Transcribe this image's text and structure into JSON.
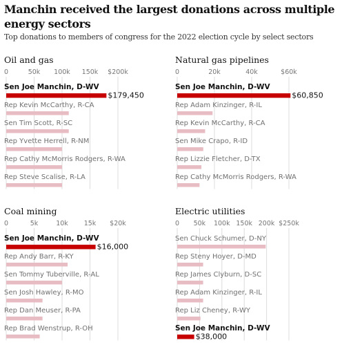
{
  "title": "Manchin received the largest donations across multiple energy sectors",
  "subtitle": "Top donations to members of congress for the 2022 election cycle by select sectors",
  "colors": {
    "highlight": "#c70000",
    "muted": "#e8bcc3",
    "grid": "#dcdcdc"
  },
  "chart_data": [
    {
      "type": "bar",
      "title": "Oil and gas",
      "xlim": [
        0,
        200000
      ],
      "ticks": [
        0,
        50000,
        100000,
        150000,
        200000
      ],
      "tick_labels": [
        "0",
        "50k",
        "100k",
        "150k",
        "$200k"
      ],
      "rows": [
        {
          "label": "Sen Joe Manchin, D-WV",
          "value": 179450,
          "value_label": "$179,450",
          "highlight": true
        },
        {
          "label": "Rep Kevin McCarthy, R-CA",
          "value": 112000,
          "highlight": false
        },
        {
          "label": "Sen Tim Scott, R-SC",
          "value": 112000,
          "highlight": false
        },
        {
          "label": "Rep Yvette Herrell, R-NM",
          "value": 100000,
          "highlight": false
        },
        {
          "label": "Rep Cathy McMorris Rodgers, R-WA",
          "value": 100000,
          "highlight": false
        },
        {
          "label": "Rep Steve Scalise, R-LA",
          "value": 100000,
          "highlight": false
        }
      ]
    },
    {
      "type": "bar",
      "title": "Natural gas pipelines",
      "xlim": [
        0,
        60000
      ],
      "ticks": [
        0,
        20000,
        40000,
        60000
      ],
      "tick_labels": [
        "0",
        "20k",
        "40k",
        "$60k"
      ],
      "rows": [
        {
          "label": "Sen Joe Manchin, D-WV",
          "value": 60850,
          "value_label": "$60,850",
          "highlight": true
        },
        {
          "label": "Rep Adam Kinzinger, R-IL",
          "value": 19000,
          "highlight": false
        },
        {
          "label": "Rep Kevin McCarthy, R-CA",
          "value": 15000,
          "highlight": false
        },
        {
          "label": "Sen Mike Crapo, R-ID",
          "value": 14000,
          "highlight": false
        },
        {
          "label": "Rep Lizzie Fletcher, D-TX",
          "value": 13000,
          "highlight": false
        },
        {
          "label": "Rep Cathy McMorris Rodgers, R-WA",
          "value": 12000,
          "highlight": false
        }
      ]
    },
    {
      "type": "bar",
      "title": "Coal mining",
      "xlim": [
        0,
        20000
      ],
      "ticks": [
        0,
        5000,
        10000,
        15000,
        20000
      ],
      "tick_labels": [
        "0",
        "5k",
        "10k",
        "15k",
        "$20k"
      ],
      "rows": [
        {
          "label": "Sen Joe Manchin, D-WV",
          "value": 16000,
          "value_label": "$16,000",
          "highlight": true
        },
        {
          "label": "Rep Andy Barr, R-KY",
          "value": 11000,
          "highlight": false
        },
        {
          "label": "Sen Tommy Tuberville, R-AL",
          "value": 10000,
          "highlight": false
        },
        {
          "label": "Sen Josh Hawley, R-MO",
          "value": 6500,
          "highlight": false
        },
        {
          "label": "Rep Dan Meuser, R-PA",
          "value": 6500,
          "highlight": false
        },
        {
          "label": "Rep Brad Wenstrup, R-OH",
          "value": 6000,
          "highlight": false
        }
      ]
    },
    {
      "type": "bar",
      "title": "Electric utilities",
      "xlim": [
        0,
        250000
      ],
      "ticks": [
        0,
        50000,
        100000,
        150000,
        200000,
        250000
      ],
      "tick_labels": [
        "0",
        "50k",
        "100k",
        "150k",
        "200k",
        "$250k"
      ],
      "rows": [
        {
          "label": "Sen Chuck Schumer, D-NY",
          "value": 198000,
          "highlight": false
        },
        {
          "label": "Rep Steny Hoyer, D-MD",
          "value": 58000,
          "highlight": false
        },
        {
          "label": "Rep James Clyburn, D-SC",
          "value": 58000,
          "highlight": false
        },
        {
          "label": "Rep Adam Kinzinger, R-IL",
          "value": 58000,
          "highlight": false
        },
        {
          "label": "Rep Liz Cheney, R-WY",
          "value": 52000,
          "highlight": false
        },
        {
          "label": "Sen Joe Manchin, D-WV",
          "value": 38000,
          "value_label": "$38,000",
          "highlight": true
        }
      ]
    }
  ]
}
